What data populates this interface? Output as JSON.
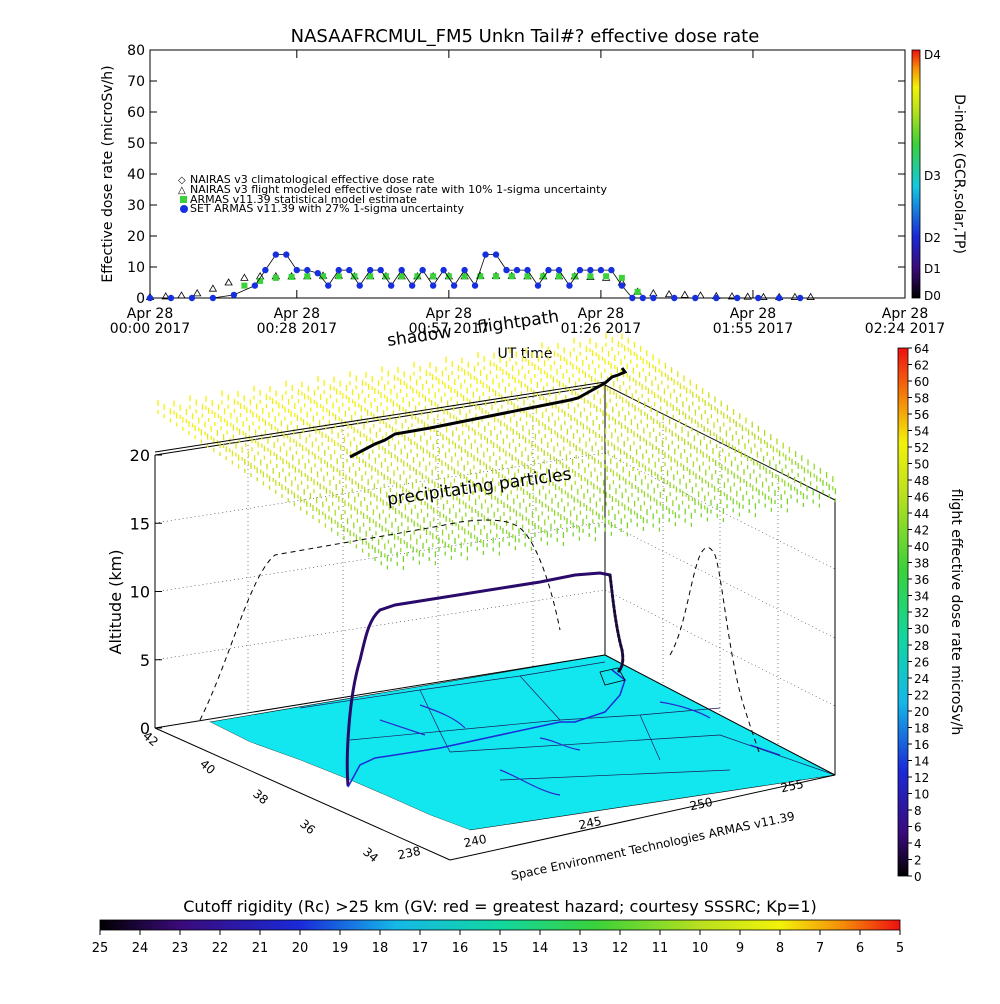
{
  "title": "NASAAFRCMUL_FM5 Unkn Tail#? effective dose rate",
  "top_chart": {
    "ylabel": "Effective dose rate (microSv/h)",
    "xlabel": "UT time",
    "x_ticks": [
      {
        "t": 0,
        "line1": "Apr 28",
        "line2": "00:00 2017"
      },
      {
        "t": 28,
        "line1": "Apr 28",
        "line2": "00:28 2017"
      },
      {
        "t": 57,
        "line1": "Apr 28",
        "line2": "00:57 2017"
      },
      {
        "t": 86,
        "line1": "Apr 28",
        "line2": "01:26 2017"
      },
      {
        "t": 115,
        "line1": "Apr 28",
        "line2": "01:55 2017"
      },
      {
        "t": 144,
        "line1": "Apr 28",
        "line2": "02:24 2017"
      }
    ],
    "y_ticks": [
      0,
      10,
      20,
      30,
      40,
      50,
      60,
      70,
      80
    ],
    "legend": [
      "NAIRAS v3 climatological effective dose rate",
      "NAIRAS v3 flight modeled effective dose rate with 10% 1-sigma uncertainty",
      "ARMAS v11.39 statistical model estimate",
      "SET ARMAS v11.39 with 27% 1-sigma uncertainty"
    ],
    "right_axis_label": "D-index (GCR,solar,TP)",
    "right_ticks": [
      "D0",
      "D1",
      "D2",
      "D3",
      "D4"
    ]
  },
  "bottom_chart": {
    "ylabel": "Altitude (km)",
    "z_ticks": [
      "0",
      "5",
      "10",
      "15",
      "20"
    ],
    "lat_ticks": [
      "34",
      "36",
      "38",
      "40",
      "42"
    ],
    "lon_ticks": [
      "238",
      "240",
      "245",
      "250",
      "255"
    ],
    "labels": {
      "precip": "precipitating particles",
      "shadow": "shadow",
      "flightpath": "flightpath",
      "credit": "Space Environment Technologies ARMAS v11.39"
    },
    "colorbar_label": "flight effective dose rate microSv/h",
    "colorbar_ticks": [
      "0",
      "2",
      "4",
      "6",
      "8",
      "10",
      "12",
      "14",
      "16",
      "18",
      "20",
      "22",
      "24",
      "26",
      "28",
      "30",
      "32",
      "34",
      "36",
      "38",
      "40",
      "42",
      "44",
      "46",
      "48",
      "50",
      "52",
      "54",
      "56",
      "58",
      "60",
      "62",
      "64"
    ]
  },
  "bottom_colorbar": {
    "label": "Cutoff rigidity (Rc) >25 km (GV: red = greatest hazard; courtesy SSSRC; Kp=1)",
    "ticks": [
      "25",
      "24",
      "23",
      "22",
      "21",
      "20",
      "19",
      "18",
      "17",
      "16",
      "15",
      "14",
      "13",
      "12",
      "11",
      "10",
      "9",
      "8",
      "7",
      "6",
      "5"
    ]
  },
  "chart_data": {
    "type": "scatter",
    "title": "NASAAFRCMUL_FM5 Unkn Tail#? effective dose rate",
    "xlabel": "UT time",
    "ylabel": "Effective dose rate (microSv/h)",
    "x_unit": "minutes after Apr 28 2017 00:00 UT",
    "xlim": [
      0,
      144
    ],
    "ylim": [
      0,
      80
    ],
    "series": [
      {
        "name": "NAIRAS v3 flight modeled effective dose rate with 10% 1-sigma uncertainty",
        "marker": "triangle",
        "color": "#000000",
        "x": [
          0,
          3,
          6,
          9,
          12,
          15,
          18,
          21,
          24,
          27,
          30,
          33,
          36,
          39,
          42,
          45,
          48,
          51,
          54,
          57,
          60,
          63,
          66,
          69,
          72,
          75,
          78,
          81,
          84,
          87,
          90,
          93,
          96,
          99,
          102,
          105,
          108,
          111,
          114,
          117,
          120,
          123,
          126
        ],
        "y": [
          0.3,
          0.5,
          0.8,
          1.5,
          3,
          5,
          6.5,
          7,
          7,
          7,
          7,
          7.2,
          7.2,
          7,
          7,
          7,
          7,
          7,
          7,
          7,
          7,
          7.1,
          7.1,
          7.1,
          7,
          7,
          7,
          7,
          6.8,
          6.5,
          5,
          2,
          1.5,
          1.2,
          1,
          0.8,
          0.6,
          0.5,
          0.4,
          0.3,
          0.3,
          0.3,
          0.3
        ]
      },
      {
        "name": "ARMAS v11.39 statistical model estimate",
        "marker": "square",
        "color": "#3ad13a",
        "x": [
          18,
          21,
          24,
          27,
          30,
          33,
          36,
          39,
          42,
          45,
          48,
          51,
          54,
          57,
          60,
          63,
          66,
          69,
          72,
          75,
          78,
          81,
          84,
          87,
          90,
          93
        ],
        "y": [
          4,
          5.5,
          6.5,
          6.8,
          7,
          7,
          7,
          7,
          7,
          7,
          7,
          7,
          7,
          7,
          7,
          7,
          7,
          7,
          7,
          7,
          7,
          7,
          7,
          7,
          6.5,
          2
        ]
      },
      {
        "name": "SET ARMAS v11.39 with 27% 1-sigma uncertainty",
        "marker": "dot",
        "color": "#1630e0",
        "x": [
          0,
          4,
          8,
          12,
          16,
          20,
          22,
          24,
          26,
          28,
          30,
          32,
          34,
          36,
          38,
          40,
          42,
          44,
          46,
          48,
          50,
          52,
          54,
          56,
          58,
          60,
          62,
          64,
          66,
          68,
          70,
          72,
          74,
          76,
          78,
          80,
          82,
          84,
          86,
          88,
          90,
          92,
          94,
          96,
          100,
          104,
          108,
          112,
          116,
          120,
          124
        ],
        "y": [
          0,
          0,
          0,
          0,
          1,
          4,
          9,
          14,
          14,
          9,
          9,
          8,
          4,
          9,
          9,
          4,
          9,
          9,
          4,
          9,
          4,
          9,
          4,
          9,
          4,
          9,
          4,
          14,
          14,
          9,
          9,
          9,
          4,
          9,
          9,
          4,
          9,
          9,
          9,
          9,
          4,
          0,
          0,
          0,
          0,
          0,
          0,
          0,
          0,
          0,
          0
        ]
      }
    ]
  }
}
